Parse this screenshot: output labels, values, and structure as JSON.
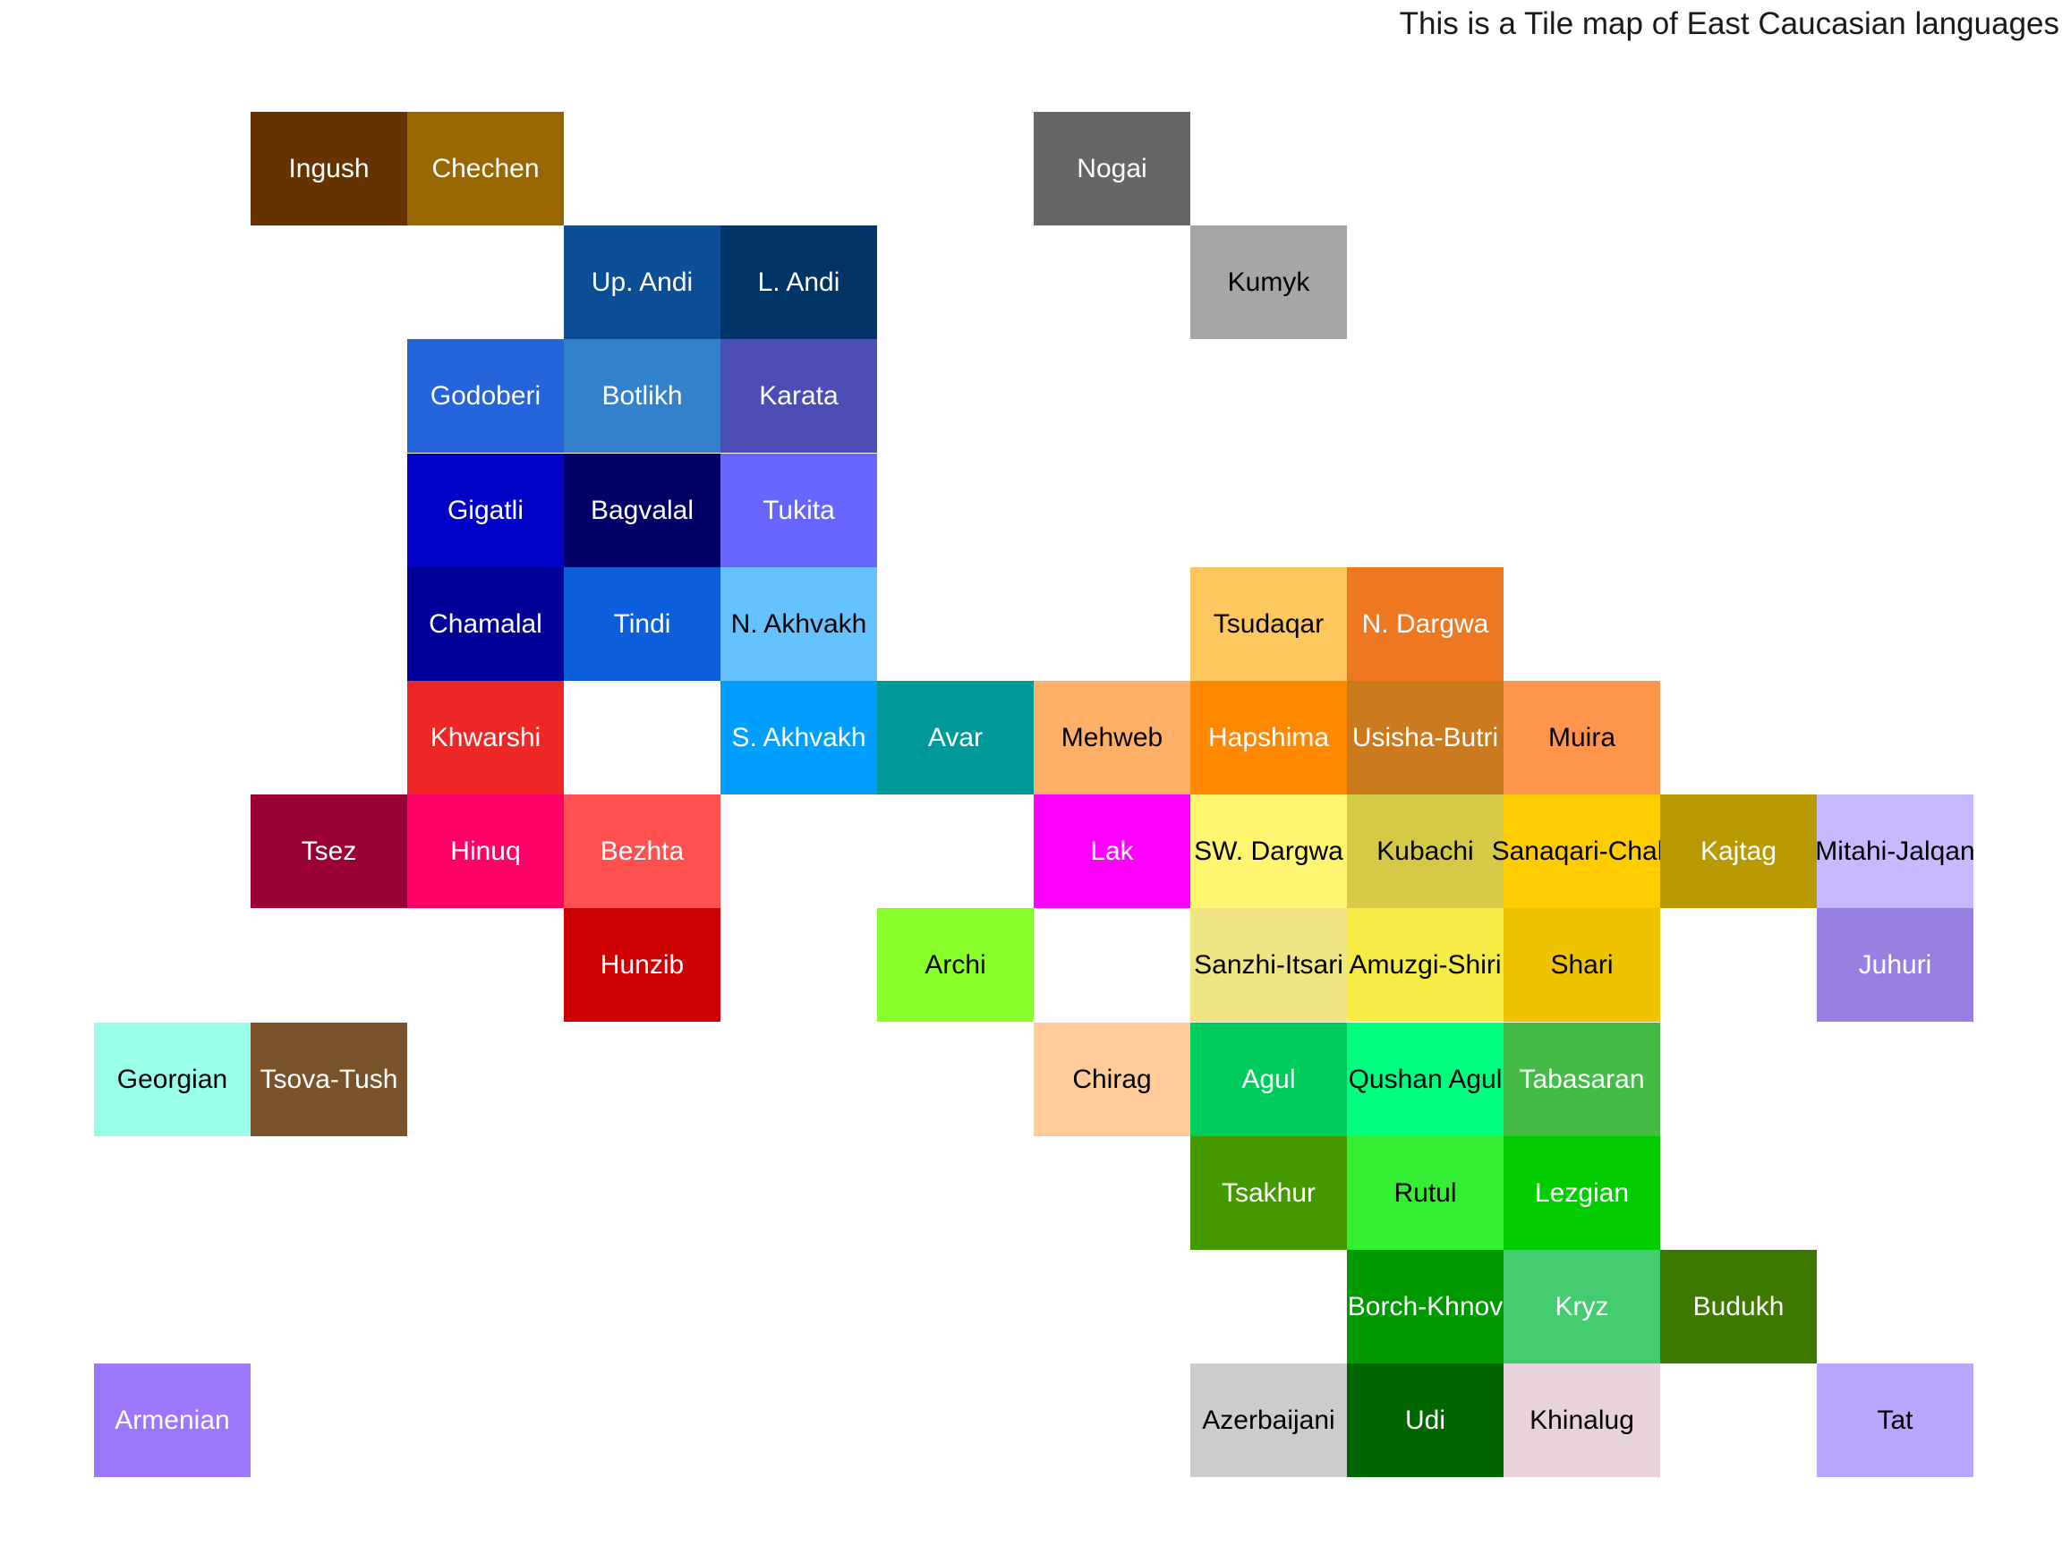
{
  "title": "This is a Tile map of East Caucasian languages",
  "tiles": [
    {
      "label": "Ingush",
      "col": 2,
      "row": 1,
      "color": "#663300",
      "text": "#ffffff"
    },
    {
      "label": "Chechen",
      "col": 3,
      "row": 1,
      "color": "#996600",
      "text": "#ffffff"
    },
    {
      "label": "Nogai",
      "col": 7,
      "row": 1,
      "color": "#666666",
      "text": "#ffffff"
    },
    {
      "label": "Up. Andi",
      "col": 4,
      "row": 2,
      "color": "#0c4e96",
      "text": "#ffffff"
    },
    {
      "label": "L. Andi",
      "col": 5,
      "row": 2,
      "color": "#003366",
      "text": "#ffffff"
    },
    {
      "label": "Kumyk",
      "col": 8,
      "row": 2,
      "color": "#a6a6a6",
      "text": "#000000"
    },
    {
      "label": "Godoberi",
      "col": 3,
      "row": 3,
      "color": "#2664dc",
      "text": "#ffffff"
    },
    {
      "label": "Botlikh",
      "col": 4,
      "row": 3,
      "color": "#3380cc",
      "text": "#ffffff"
    },
    {
      "label": "Karata",
      "col": 5,
      "row": 3,
      "color": "#4d4db8",
      "text": "#ffffff"
    },
    {
      "label": "Gigatli",
      "col": 3,
      "row": 4,
      "color": "#0000c6",
      "text": "#ffffff"
    },
    {
      "label": "Bagvalal",
      "col": 4,
      "row": 4,
      "color": "#000066",
      "text": "#ffffff"
    },
    {
      "label": "Tukita",
      "col": 5,
      "row": 4,
      "color": "#6666ff",
      "text": "#ffffff"
    },
    {
      "label": "Chamalal",
      "col": 3,
      "row": 5,
      "color": "#000099",
      "text": "#ffffff"
    },
    {
      "label": "Tindi",
      "col": 4,
      "row": 5,
      "color": "#0c5edc",
      "text": "#ffffff"
    },
    {
      "label": "N. Akhvakh",
      "col": 5,
      "row": 5,
      "color": "#66c2ff",
      "text": "#000000"
    },
    {
      "label": "Tsudaqar",
      "col": 8,
      "row": 5,
      "color": "#ffc85e",
      "text": "#000000"
    },
    {
      "label": "N. Dargwa",
      "col": 9,
      "row": 5,
      "color": "#ee7722",
      "text": "#ffffff"
    },
    {
      "label": "Khwarshi",
      "col": 3,
      "row": 6,
      "color": "#ee2626",
      "text": "#ffffff"
    },
    {
      "label": "S. Akhvakh",
      "col": 5,
      "row": 6,
      "color": "#009fff",
      "text": "#ffffff"
    },
    {
      "label": "Avar",
      "col": 6,
      "row": 6,
      "color": "#009999",
      "text": "#ffffff"
    },
    {
      "label": "Mehweb",
      "col": 7,
      "row": 6,
      "color": "#ffb066",
      "text": "#000000"
    },
    {
      "label": "Hapshima",
      "col": 8,
      "row": 6,
      "color": "#ff8800",
      "text": "#ffffff"
    },
    {
      "label": "Usisha-Butri",
      "col": 9,
      "row": 6,
      "color": "#cc7a1e",
      "text": "#ffffff"
    },
    {
      "label": "Muira",
      "col": 10,
      "row": 6,
      "color": "#ff944d",
      "text": "#000000"
    },
    {
      "label": "Tsez",
      "col": 2,
      "row": 7,
      "color": "#990033",
      "text": "#ffffff"
    },
    {
      "label": "Hinuq",
      "col": 3,
      "row": 7,
      "color": "#ff0066",
      "text": "#ffffff"
    },
    {
      "label": "Bezhta",
      "col": 4,
      "row": 7,
      "color": "#ff5050",
      "text": "#ffffff"
    },
    {
      "label": "Lak",
      "col": 7,
      "row": 7,
      "color": "#ff00ff",
      "text": "#ffffff"
    },
    {
      "label": "SW. Dargwa",
      "col": 8,
      "row": 7,
      "color": "#fff570",
      "text": "#000000"
    },
    {
      "label": "Kubachi",
      "col": 9,
      "row": 7,
      "color": "#d4ca48",
      "text": "#000000"
    },
    {
      "label": "Sanaqari-Chah",
      "col": 10,
      "row": 7,
      "color": "#ffcc00",
      "text": "#000000"
    },
    {
      "label": "Kajtag",
      "col": 11,
      "row": 7,
      "color": "#b89a00",
      "text": "#ffffff"
    },
    {
      "label": "Mitahi-Jalqan",
      "col": 12,
      "row": 7,
      "color": "#c8b8ff",
      "text": "#000000"
    },
    {
      "label": "Hunzib",
      "col": 4,
      "row": 8,
      "color": "#cc0000",
      "text": "#ffffff"
    },
    {
      "label": "Archi",
      "col": 6,
      "row": 8,
      "color": "#88ff2a",
      "text": "#000000"
    },
    {
      "label": "Sanzhi-Itsari",
      "col": 8,
      "row": 8,
      "color": "#efe585",
      "text": "#000000"
    },
    {
      "label": "Amuzgi-Shiri",
      "col": 9,
      "row": 8,
      "color": "#f7eb45",
      "text": "#000000"
    },
    {
      "label": "Shari",
      "col": 10,
      "row": 8,
      "color": "#efc300",
      "text": "#000000"
    },
    {
      "label": "Juhuri",
      "col": 12,
      "row": 8,
      "color": "#9980e0",
      "text": "#ffffff"
    },
    {
      "label": "Georgian",
      "col": 1,
      "row": 9,
      "color": "#99ffea",
      "text": "#000000"
    },
    {
      "label": "Tsova-Tush",
      "col": 2,
      "row": 9,
      "color": "#7a522c",
      "text": "#ffffff"
    },
    {
      "label": "Chirag",
      "col": 7,
      "row": 9,
      "color": "#ffcc99",
      "text": "#000000"
    },
    {
      "label": "Agul",
      "col": 8,
      "row": 9,
      "color": "#00cc5e",
      "text": "#ffffff"
    },
    {
      "label": "Qushan Agul",
      "col": 9,
      "row": 9,
      "color": "#00ff80",
      "text": "#000000"
    },
    {
      "label": "Tabasaran",
      "col": 10,
      "row": 9,
      "color": "#44bb44",
      "text": "#ffffff"
    },
    {
      "label": "Tsakhur",
      "col": 8,
      "row": 10,
      "color": "#449900",
      "text": "#ffffff"
    },
    {
      "label": "Rutul",
      "col": 9,
      "row": 10,
      "color": "#33ee33",
      "text": "#000000"
    },
    {
      "label": "Lezgian",
      "col": 10,
      "row": 10,
      "color": "#00cc00",
      "text": "#ffffff"
    },
    {
      "label": "Borch-Khnov",
      "col": 9,
      "row": 11,
      "color": "#009900",
      "text": "#ffffff"
    },
    {
      "label": "Kryz",
      "col": 10,
      "row": 11,
      "color": "#44cc70",
      "text": "#ffffff"
    },
    {
      "label": "Budukh",
      "col": 11,
      "row": 11,
      "color": "#3f7a00",
      "text": "#ffffff"
    },
    {
      "label": "Armenian",
      "col": 1,
      "row": 12,
      "color": "#9e77ff",
      "text": "#ffffff"
    },
    {
      "label": "Azerbaijani",
      "col": 8,
      "row": 12,
      "color": "#cccccc",
      "text": "#000000"
    },
    {
      "label": "Udi",
      "col": 9,
      "row": 12,
      "color": "#006600",
      "text": "#ffffff"
    },
    {
      "label": "Khinalug",
      "col": 10,
      "row": 12,
      "color": "#e8d2dc",
      "text": "#000000"
    },
    {
      "label": "Tat",
      "col": 12,
      "row": 12,
      "color": "#bba6ff",
      "text": "#000000"
    }
  ]
}
